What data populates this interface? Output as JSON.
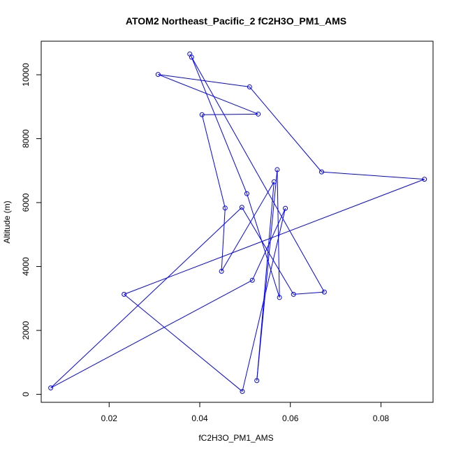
{
  "chart_data": {
    "type": "line",
    "title": "ATOM2 Northeast_Pacific_2 fC2H3O_PM1_AMS",
    "xlabel": "fC2H3O_PM1_AMS",
    "ylabel": "Altitude (m)",
    "xlim": [
      0.005,
      0.0915
    ],
    "ylim": [
      -250,
      11050
    ],
    "xticks": [
      0.02,
      0.04,
      0.06,
      0.08
    ],
    "xtick_labels": [
      "0.02",
      "0.04",
      "0.06",
      "0.08"
    ],
    "yticks": [
      0,
      2000,
      4000,
      6000,
      8000,
      10000
    ],
    "ytick_labels": [
      "0",
      "2000",
      "4000",
      "6000",
      "8000",
      "10000"
    ],
    "grid": false,
    "series": [
      {
        "marker": "open-circle",
        "points": [
          {
            "x": 0.0378,
            "y": 10650
          },
          {
            "x": 0.0675,
            "y": 3200
          },
          {
            "x": 0.0607,
            "y": 3130
          },
          {
            "x": 0.0493,
            "y": 5850
          },
          {
            "x": 0.0071,
            "y": 200
          },
          {
            "x": 0.0516,
            "y": 3570
          },
          {
            "x": 0.0589,
            "y": 5820
          },
          {
            "x": 0.0494,
            "y": 90
          },
          {
            "x": 0.0233,
            "y": 3130
          },
          {
            "x": 0.0896,
            "y": 6730
          },
          {
            "x": 0.0669,
            "y": 6960
          },
          {
            "x": 0.051,
            "y": 9620
          },
          {
            "x": 0.0308,
            "y": 10010
          },
          {
            "x": 0.0529,
            "y": 8770
          },
          {
            "x": 0.0405,
            "y": 8750
          },
          {
            "x": 0.0456,
            "y": 5830
          },
          {
            "x": 0.0448,
            "y": 3850
          },
          {
            "x": 0.0564,
            "y": 6650
          },
          {
            "x": 0.0526,
            "y": 430
          },
          {
            "x": 0.0571,
            "y": 7030
          },
          {
            "x": 0.0576,
            "y": 3030
          },
          {
            "x": 0.0504,
            "y": 6280
          },
          {
            "x": 0.0382,
            "y": 10550
          }
        ]
      }
    ],
    "colors": {
      "series": "#0000ff",
      "axes": "#000000",
      "background": "#ffffff"
    }
  }
}
